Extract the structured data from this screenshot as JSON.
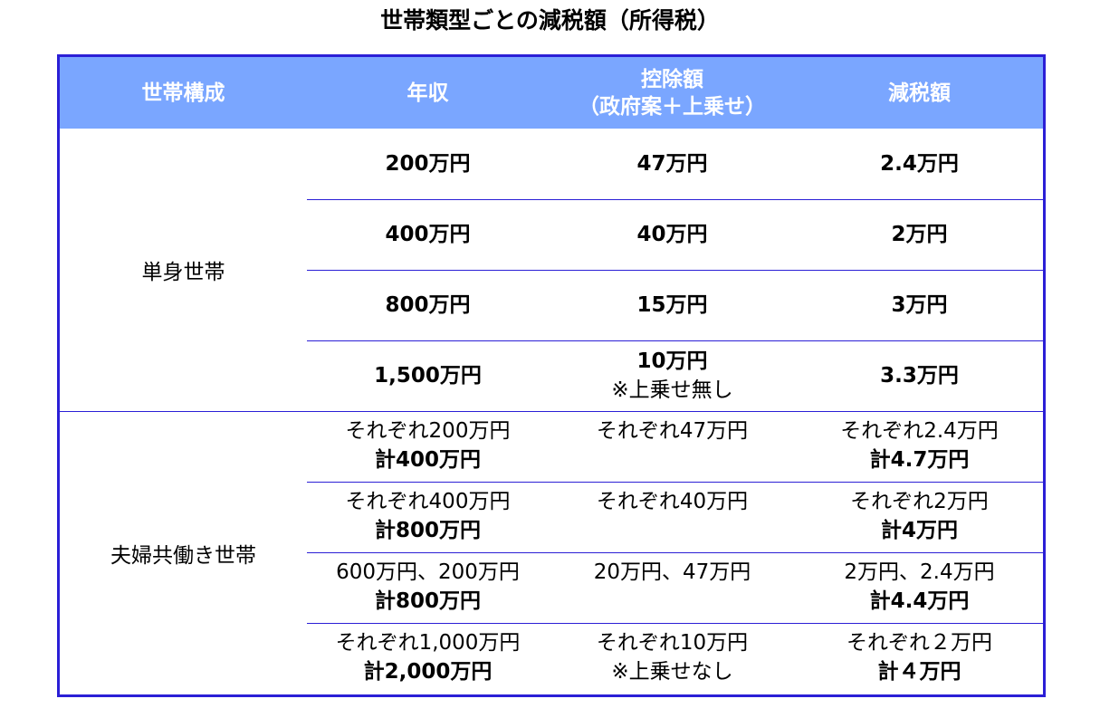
{
  "title": "世帯類型ごとの減税額（所得税）",
  "header": {
    "col1": "世帯構成",
    "col2": "年収",
    "col3_line1": "控除額",
    "col3_line2": "（政府案＋上乗せ）",
    "col4": "減税額"
  },
  "groups": [
    {
      "label": "単身世帯",
      "rows": [
        {
          "income": "200万円",
          "deduction": "47万円",
          "deduction_note": "",
          "reduction": "2.4万円"
        },
        {
          "income": "400万円",
          "deduction": "40万円",
          "deduction_note": "",
          "reduction": "2万円"
        },
        {
          "income": "800万円",
          "deduction": "15万円",
          "deduction_note": "",
          "reduction": "3万円"
        },
        {
          "income": "1,500万円",
          "deduction": "10万円",
          "deduction_note": "※上乗せ無し",
          "reduction": "3.3万円"
        }
      ]
    },
    {
      "label": "夫婦共働き世帯",
      "rows": [
        {
          "income_line1": "それぞれ200万円",
          "income_line2": "計400万円",
          "deduction_line1": "それぞれ47万円",
          "deduction_line2": "",
          "reduction_line1": "それぞれ2.4万円",
          "reduction_line2": "計4.7万円"
        },
        {
          "income_line1": "それぞれ400万円",
          "income_line2": "計800万円",
          "deduction_line1": "それぞれ40万円",
          "deduction_line2": "",
          "reduction_line1": "それぞれ2万円",
          "reduction_line2": "計4万円"
        },
        {
          "income_line1": "600万円、200万円",
          "income_line2": "計800万円",
          "deduction_line1": "20万円、47万円",
          "deduction_line2": "",
          "reduction_line1": "2万円、2.4万円",
          "reduction_line2": "計4.4万円"
        },
        {
          "income_line1": "それぞれ1,000万円",
          "income_line2": "計2,000万円",
          "deduction_line1": "それぞれ10万円",
          "deduction_line2": "※上乗せなし",
          "reduction_line1": "それぞれ２万円",
          "reduction_line2": "計４万円"
        }
      ]
    }
  ],
  "colors": {
    "border": "#2b1fd6",
    "header_bg": "#7aa6ff",
    "header_text": "#ffffff"
  }
}
